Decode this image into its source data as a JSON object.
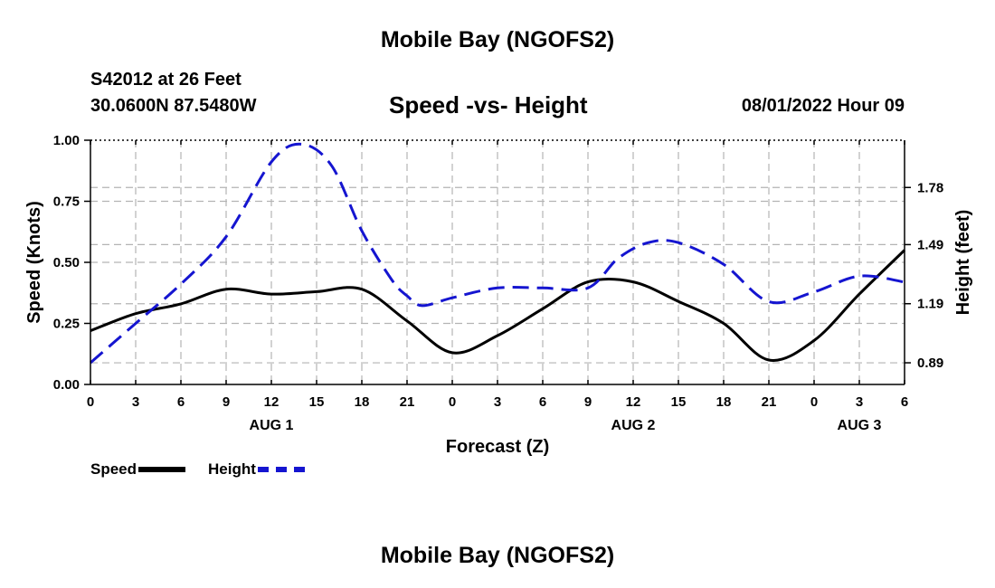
{
  "page": {
    "title": "Mobile Bay (NGOFS2)",
    "station": "S42012 at 26 Feet",
    "coords": "30.0600N  87.5480W",
    "subtitle": "Speed -vs- Height",
    "datetime": "08/01/2022 Hour 09",
    "bottom_title": "Mobile Bay (NGOFS2)"
  },
  "legend": {
    "speed_label": "Speed",
    "height_label": "Height"
  },
  "colors": {
    "speed": "#000000",
    "height": "#1515d0",
    "grid": "#b4b4b4"
  },
  "chart_data": {
    "type": "line",
    "title": "Speed -vs- Height",
    "xlabel": "Forecast (Z)",
    "ylabel": "Speed (Knots)",
    "y2label": "Height (feet)",
    "x_range": [
      0,
      54
    ],
    "ylim": [
      0,
      1
    ],
    "y2lim": [
      0.78,
      2.02
    ],
    "x_ticks": [
      {
        "x": 0,
        "label": "0"
      },
      {
        "x": 3,
        "label": "3"
      },
      {
        "x": 6,
        "label": "6"
      },
      {
        "x": 9,
        "label": "9"
      },
      {
        "x": 12,
        "label": "12"
      },
      {
        "x": 15,
        "label": "15"
      },
      {
        "x": 18,
        "label": "18"
      },
      {
        "x": 21,
        "label": "21"
      },
      {
        "x": 24,
        "label": "0"
      },
      {
        "x": 27,
        "label": "3"
      },
      {
        "x": 30,
        "label": "6"
      },
      {
        "x": 33,
        "label": "9"
      },
      {
        "x": 36,
        "label": "12"
      },
      {
        "x": 39,
        "label": "15"
      },
      {
        "x": 42,
        "label": "18"
      },
      {
        "x": 45,
        "label": "21"
      },
      {
        "x": 48,
        "label": "0"
      },
      {
        "x": 51,
        "label": "3"
      },
      {
        "x": 54,
        "label": "6"
      }
    ],
    "day_labels": [
      {
        "x": 12,
        "label": "AUG 1"
      },
      {
        "x": 36,
        "label": "AUG 2"
      },
      {
        "x": 51,
        "label": "AUG 3"
      }
    ],
    "y_ticks": [
      {
        "value": 0,
        "label": "0.00"
      },
      {
        "value": 0.25,
        "label": "0.25"
      },
      {
        "value": 0.5,
        "label": "0.50"
      },
      {
        "value": 0.75,
        "label": "0.75"
      },
      {
        "value": 1.0,
        "label": "1.00"
      }
    ],
    "y2_ticks": [
      {
        "value": 0.89,
        "label": "0.89"
      },
      {
        "value": 1.19,
        "label": "1.19"
      },
      {
        "value": 1.49,
        "label": "1.49"
      },
      {
        "value": 1.78,
        "label": "1.78"
      }
    ],
    "series": [
      {
        "name": "Speed",
        "axis": "left",
        "x": [
          0,
          3,
          6,
          9,
          12,
          15,
          18,
          21,
          24,
          27,
          30,
          33,
          36,
          39,
          42,
          45,
          48,
          51,
          54
        ],
        "values": [
          0.22,
          0.29,
          0.33,
          0.39,
          0.37,
          0.38,
          0.39,
          0.26,
          0.13,
          0.2,
          0.31,
          0.42,
          0.42,
          0.34,
          0.25,
          0.1,
          0.18,
          0.37,
          0.55
        ]
      },
      {
        "name": "Height",
        "axis": "right",
        "x": [
          0,
          3,
          6,
          9,
          12,
          14,
          16,
          18,
          20,
          21,
          22,
          24,
          27,
          30,
          33,
          35,
          37,
          39,
          42,
          45,
          48,
          51,
          54
        ],
        "values": [
          0.89,
          1.09,
          1.29,
          1.53,
          1.91,
          2.0,
          1.89,
          1.56,
          1.31,
          1.23,
          1.18,
          1.22,
          1.27,
          1.27,
          1.27,
          1.42,
          1.5,
          1.5,
          1.39,
          1.2,
          1.25,
          1.33,
          1.3
        ]
      }
    ]
  }
}
